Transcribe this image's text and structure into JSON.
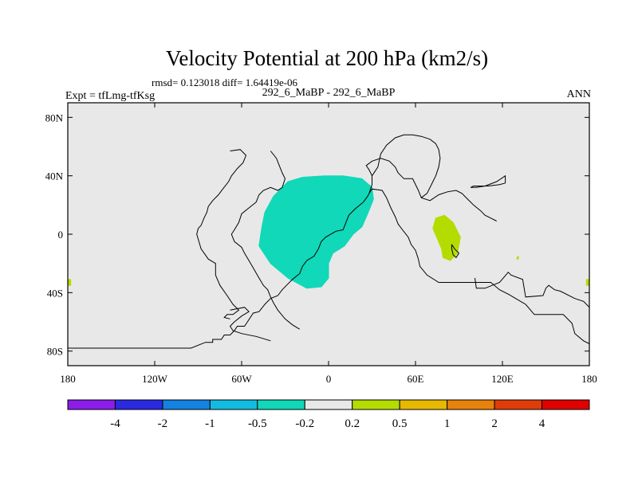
{
  "chart_data": {
    "type": "heatmap",
    "title": "Velocity Potential at 200 hPa (km2/s)",
    "stats_text": "rmsd= 0.123018 diff= 1.64419e-06",
    "subtitle": "292_6_MaBP - 292_6_MaBP",
    "left_label": "Expt = tfLmg-tfKsg",
    "right_label": "ANN",
    "xlim": [
      -180,
      180
    ],
    "ylim": [
      -90,
      90
    ],
    "lat_ticks": [
      {
        "value": 80,
        "label": "80N"
      },
      {
        "value": 40,
        "label": "40N"
      },
      {
        "value": 0,
        "label": "0"
      },
      {
        "value": -40,
        "label": "40S"
      },
      {
        "value": -80,
        "label": "80S"
      }
    ],
    "lon_ticks": [
      {
        "value": -180,
        "label": "180"
      },
      {
        "value": -120,
        "label": "120W"
      },
      {
        "value": -60,
        "label": "60W"
      },
      {
        "value": 0,
        "label": "0"
      },
      {
        "value": 60,
        "label": "60E"
      },
      {
        "value": 120,
        "label": "120E"
      },
      {
        "value": 180,
        "label": "180"
      }
    ],
    "field_regions": [
      {
        "name": "atlantic-negative",
        "bin": "-0.5 to -0.2",
        "color": "#10d8b8",
        "polygon": [
          [
            -38,
            26
          ],
          [
            -28,
            36
          ],
          [
            -18,
            39
          ],
          [
            -3,
            40
          ],
          [
            10,
            40
          ],
          [
            23,
            38
          ],
          [
            30,
            32
          ],
          [
            31,
            24
          ],
          [
            27,
            14
          ],
          [
            23,
            5
          ],
          [
            17,
            0
          ],
          [
            11,
            -8
          ],
          [
            3,
            -13
          ],
          [
            0,
            -20
          ],
          [
            0,
            -30
          ],
          [
            -5,
            -36
          ],
          [
            -15,
            -37
          ],
          [
            -28,
            -30
          ],
          [
            -40,
            -20
          ],
          [
            -48,
            -8
          ],
          [
            -46,
            5
          ],
          [
            -44,
            15
          ]
        ]
      },
      {
        "name": "indian-positive",
        "bin": "0.2 to 0.5",
        "color": "#b4dc00",
        "polygon": [
          [
            74,
            11
          ],
          [
            80,
            13
          ],
          [
            86,
            8
          ],
          [
            91,
            -2
          ],
          [
            89,
            -13
          ],
          [
            84,
            -18
          ],
          [
            79,
            -16
          ],
          [
            78,
            -10
          ],
          [
            75,
            -3
          ],
          [
            72,
            4
          ]
        ]
      },
      {
        "name": "pacific-dot",
        "bin": "0.2 to 0.5",
        "color": "#b4dc00",
        "polygon": [
          [
            130,
            -16
          ],
          [
            131,
            -15
          ],
          [
            131,
            -17
          ],
          [
            130,
            -17
          ]
        ]
      },
      {
        "name": "west-edge-dot",
        "bin": "0.2 to 0.5",
        "color": "#b4dc00",
        "polygon": [
          [
            -180,
            -31
          ],
          [
            -178,
            -31
          ],
          [
            -178,
            -35
          ],
          [
            -180,
            -35
          ]
        ]
      },
      {
        "name": "east-edge-dot",
        "bin": "0.2 to 0.5",
        "color": "#b4dc00",
        "polygon": [
          [
            178,
            -31
          ],
          [
            180,
            -31
          ],
          [
            180,
            -35
          ],
          [
            178,
            -35
          ]
        ]
      }
    ],
    "colorbar": {
      "colors": [
        "#8c1ce8",
        "#2a2ae0",
        "#1482e0",
        "#12bce0",
        "#10d8b8",
        "#e8e8e8",
        "#b4dc00",
        "#e6b800",
        "#e8820a",
        "#e03c0a",
        "#e00000"
      ],
      "labels": [
        "-4",
        "-2",
        "-1",
        "-0.5",
        "-0.2",
        "0.2",
        "0.5",
        "1",
        "2",
        "4"
      ]
    },
    "background_color": "#e8e8e8",
    "coastlines": [
      [
        [
          -180,
          -78
        ],
        [
          -95,
          -78
        ],
        [
          -85,
          -74
        ],
        [
          -80,
          -74
        ],
        [
          -80,
          -72
        ],
        [
          -74,
          -72
        ],
        [
          -72,
          -69
        ],
        [
          -68,
          -69
        ],
        [
          -65,
          -66
        ],
        [
          -63,
          -63
        ],
        [
          -58,
          -63
        ],
        [
          -56,
          -60
        ],
        [
          -52,
          -54
        ],
        [
          -48,
          -53
        ],
        [
          -44,
          -48
        ],
        [
          -40,
          -44
        ],
        [
          -35,
          -42
        ],
        [
          -32,
          -38
        ],
        [
          -28,
          -34
        ],
        [
          -25,
          -31
        ],
        [
          -20,
          -27
        ],
        [
          -18,
          -22
        ],
        [
          -15,
          -18
        ],
        [
          -10,
          -15
        ],
        [
          -7,
          -10
        ],
        [
          -5,
          -5
        ],
        [
          -2,
          -2
        ],
        [
          5,
          2
        ],
        [
          10,
          3
        ],
        [
          12,
          8
        ],
        [
          14,
          13
        ],
        [
          18,
          17
        ],
        [
          24,
          22
        ],
        [
          27,
          26
        ],
        [
          28,
          28
        ],
        [
          30,
          31
        ],
        [
          37,
          30
        ],
        [
          40,
          25
        ],
        [
          43,
          18
        ],
        [
          46,
          12
        ],
        [
          48,
          7
        ],
        [
          51,
          3
        ],
        [
          55,
          -2
        ],
        [
          57,
          -7
        ],
        [
          60,
          -11
        ],
        [
          62,
          -17
        ],
        [
          63,
          -22
        ],
        [
          68,
          -28
        ],
        [
          76,
          -33
        ],
        [
          90,
          -33
        ],
        [
          104,
          -33
        ],
        [
          112,
          -33
        ],
        [
          118,
          -38
        ],
        [
          124,
          -41
        ],
        [
          136,
          -48
        ],
        [
          142,
          -55
        ],
        [
          150,
          -55
        ],
        [
          162,
          -55
        ],
        [
          168,
          -61
        ],
        [
          170,
          -68
        ],
        [
          176,
          -73
        ],
        [
          180,
          -75
        ]
      ],
      [
        [
          -68,
          57
        ],
        [
          -61,
          58
        ],
        [
          -57,
          54
        ],
        [
          -59,
          49
        ],
        [
          -63,
          45
        ],
        [
          -67,
          40
        ],
        [
          -69,
          36
        ],
        [
          -73,
          31
        ],
        [
          -76,
          27
        ],
        [
          -80,
          23
        ],
        [
          -83,
          19
        ],
        [
          -84,
          15
        ],
        [
          -86,
          11
        ],
        [
          -88,
          6
        ],
        [
          -90,
          4
        ],
        [
          -91,
          0
        ],
        [
          -88,
          -10
        ],
        [
          -83,
          -17
        ],
        [
          -78,
          -20
        ],
        [
          -78,
          -28
        ],
        [
          -75,
          -35
        ],
        [
          -70,
          -42
        ],
        [
          -66,
          -48
        ],
        [
          -62,
          -52
        ],
        [
          -66,
          -55
        ],
        [
          -70,
          -55
        ],
        [
          -72,
          -57
        ],
        [
          -68,
          -58
        ]
      ],
      [
        [
          -40,
          57
        ],
        [
          -36,
          52
        ],
        [
          -34,
          47
        ],
        [
          -32,
          42
        ],
        [
          -30,
          38
        ],
        [
          -32,
          32
        ],
        [
          -35,
          30
        ],
        [
          -40,
          32
        ],
        [
          -45,
          30
        ],
        [
          -48,
          27
        ],
        [
          -50,
          22
        ],
        [
          -55,
          18
        ],
        [
          -60,
          14
        ],
        [
          -62,
          8
        ],
        [
          -65,
          3
        ],
        [
          -67,
          0
        ],
        [
          -65,
          -5
        ],
        [
          -60,
          -9
        ],
        [
          -58,
          -13
        ],
        [
          -55,
          -18
        ],
        [
          -52,
          -23
        ],
        [
          -48,
          -30
        ],
        [
          -45,
          -35
        ],
        [
          -42,
          -38
        ],
        [
          -40,
          -43
        ],
        [
          -38,
          -47
        ],
        [
          -35,
          -52
        ],
        [
          -30,
          -58
        ],
        [
          -25,
          -62
        ],
        [
          -20,
          -65
        ]
      ],
      [
        [
          -68,
          -52
        ],
        [
          -58,
          -50
        ],
        [
          -55,
          -53
        ],
        [
          -60,
          -56
        ],
        [
          -65,
          -60
        ],
        [
          -68,
          -63
        ],
        [
          -66,
          -66
        ],
        [
          -60,
          -68
        ],
        [
          -50,
          -70
        ],
        [
          -40,
          -73
        ]
      ],
      [
        [
          28,
          28
        ],
        [
          30,
          34
        ],
        [
          30,
          40
        ],
        [
          28,
          44
        ],
        [
          26,
          47
        ],
        [
          30,
          50
        ],
        [
          36,
          52
        ],
        [
          42,
          50
        ],
        [
          46,
          46
        ],
        [
          48,
          42
        ],
        [
          52,
          38
        ],
        [
          58,
          38
        ],
        [
          62,
          30
        ],
        [
          64,
          25
        ],
        [
          70,
          23
        ],
        [
          76,
          27
        ],
        [
          82,
          29
        ],
        [
          88,
          30
        ],
        [
          92,
          28
        ],
        [
          96,
          24
        ],
        [
          100,
          20
        ],
        [
          105,
          16
        ],
        [
          108,
          13
        ],
        [
          112,
          11
        ],
        [
          116,
          9
        ]
      ],
      [
        [
          30,
          40
        ],
        [
          34,
          46
        ],
        [
          36,
          55
        ],
        [
          40,
          61
        ],
        [
          46,
          66
        ],
        [
          52,
          68
        ],
        [
          58,
          68
        ],
        [
          64,
          67
        ],
        [
          70,
          65
        ],
        [
          74,
          62
        ],
        [
          76,
          58
        ],
        [
          77,
          52
        ],
        [
          76,
          46
        ],
        [
          74,
          40
        ],
        [
          72,
          36
        ],
        [
          70,
          32
        ],
        [
          68,
          28
        ],
        [
          64,
          25
        ]
      ],
      [
        [
          98,
          32
        ],
        [
          102,
          32
        ],
        [
          108,
          33
        ],
        [
          116,
          36
        ],
        [
          122,
          40
        ],
        [
          122,
          35
        ],
        [
          118,
          34
        ],
        [
          110,
          33
        ],
        [
          100,
          33
        ],
        [
          98,
          32
        ]
      ],
      [
        [
          85,
          -7
        ],
        [
          87,
          -10
        ],
        [
          90,
          -13
        ],
        [
          88,
          -16
        ],
        [
          86,
          -14
        ],
        [
          85,
          -10
        ],
        [
          85,
          -7
        ]
      ],
      [
        [
          101,
          -30
        ],
        [
          102,
          -37
        ],
        [
          108,
          -37
        ],
        [
          118,
          -33
        ],
        [
          124,
          -26
        ],
        [
          126,
          -28
        ],
        [
          134,
          -31
        ],
        [
          136,
          -43
        ],
        [
          148,
          -42
        ],
        [
          150,
          -37
        ],
        [
          152,
          -35
        ],
        [
          156,
          -38
        ],
        [
          160,
          -39
        ],
        [
          170,
          -44
        ],
        [
          176,
          -46
        ],
        [
          180,
          -50
        ]
      ]
    ]
  }
}
